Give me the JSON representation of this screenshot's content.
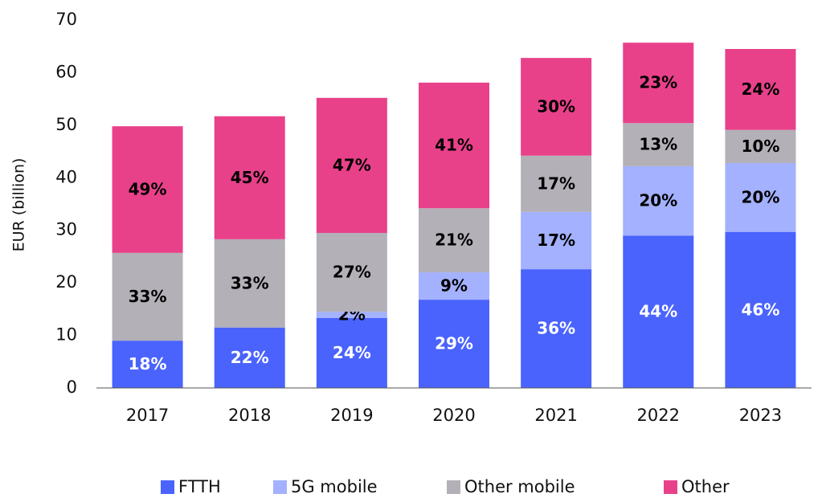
{
  "chart_data": {
    "type": "stacked_bar",
    "y_label": "EUR (billion)",
    "categories": [
      "2017",
      "2018",
      "2019",
      "2020",
      "2021",
      "2022",
      "2023"
    ],
    "series": [
      {
        "name": "FTTH",
        "color": "#4a63fd",
        "label_color": "#ffffff",
        "values": [
          9.0,
          11.5,
          13.3,
          16.8,
          22.6,
          29.0,
          29.7
        ],
        "value_labels": [
          "18%",
          "22%",
          "24%",
          "29%",
          "36%",
          "44%",
          "46%"
        ]
      },
      {
        "name": "5G mobile",
        "color": "#a3b1fe",
        "label_color": "#000000",
        "values": [
          0,
          0,
          1.2,
          5.2,
          10.9,
          13.2,
          13.1
        ],
        "value_labels": [
          null,
          null,
          "2%",
          "9%",
          "17%",
          "20%",
          "20%"
        ]
      },
      {
        "name": "Other mobile",
        "color": "#b3b0b8",
        "label_color": "#000000",
        "values": [
          16.7,
          16.8,
          15.0,
          12.2,
          10.7,
          8.2,
          6.3
        ],
        "value_labels": [
          "33%",
          "33%",
          "27%",
          "21%",
          "17%",
          "13%",
          "10%"
        ]
      },
      {
        "name": "Other",
        "color": "#e8418a",
        "label_color": "#000000",
        "values": [
          24.1,
          23.4,
          25.7,
          23.9,
          18.6,
          15.3,
          15.4
        ],
        "value_labels": [
          "49%",
          "45%",
          "47%",
          "41%",
          "30%",
          "23%",
          "24%"
        ]
      }
    ],
    "ylim": [
      0,
      70
    ],
    "yticks": [
      0,
      10,
      20,
      30,
      40,
      50,
      60,
      70
    ],
    "grid": false,
    "legend": "bottom"
  }
}
